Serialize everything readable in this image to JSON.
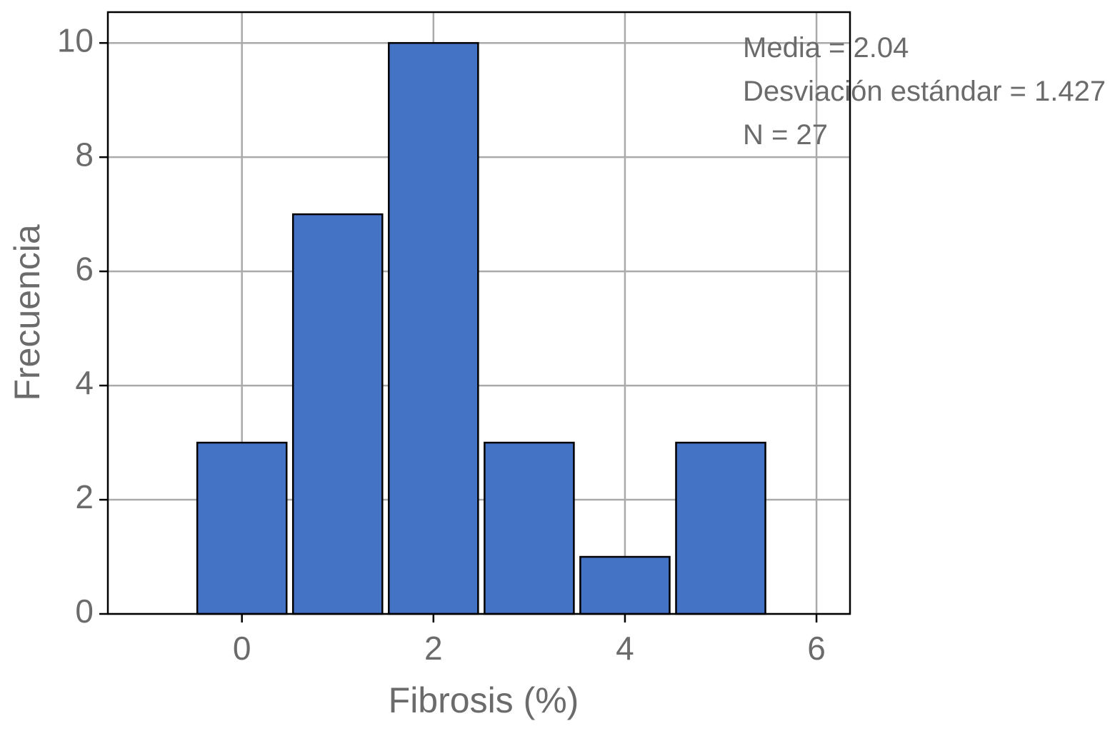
{
  "chart_data": {
    "type": "histogram",
    "x_label": "Fibrosis (%)",
    "y_label": "Frecuencia",
    "bins": [
      -0.5,
      0.5,
      1.5,
      2.5,
      3.5,
      4.5,
      5.5
    ],
    "values": [
      3,
      7,
      10,
      3,
      1,
      3
    ],
    "color": "#4472c4",
    "xlim": [
      -1.4,
      6.35
    ],
    "xticks": [
      0,
      2,
      4,
      6
    ],
    "ylim": [
      0,
      10.54
    ],
    "yticks": [
      0,
      2,
      4,
      6,
      8,
      10
    ],
    "grid": true,
    "annotations": [
      "Media = 2.04",
      "Desviación estándar = 1.427",
      "N = 27"
    ]
  }
}
